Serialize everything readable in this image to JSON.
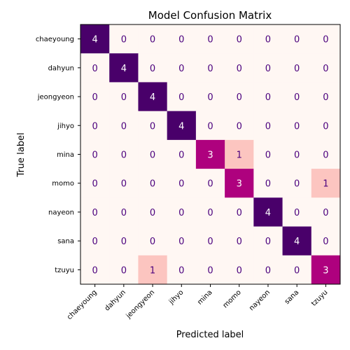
{
  "chart_data": {
    "type": "heatmap",
    "title": "Model Confusion Matrix",
    "xlabel": "Predicted label",
    "ylabel": "True label",
    "labels": [
      "chaeyoung",
      "dahyun",
      "jeongyeon",
      "jihyo",
      "mina",
      "momo",
      "nayeon",
      "sana",
      "tzuyu"
    ],
    "matrix": [
      [
        4,
        0,
        0,
        0,
        0,
        0,
        0,
        0,
        0
      ],
      [
        0,
        4,
        0,
        0,
        0,
        0,
        0,
        0,
        0
      ],
      [
        0,
        0,
        4,
        0,
        0,
        0,
        0,
        0,
        0
      ],
      [
        0,
        0,
        0,
        4,
        0,
        0,
        0,
        0,
        0
      ],
      [
        0,
        0,
        0,
        0,
        3,
        1,
        0,
        0,
        0
      ],
      [
        0,
        0,
        0,
        0,
        0,
        3,
        0,
        0,
        1
      ],
      [
        0,
        0,
        0,
        0,
        0,
        0,
        4,
        0,
        0
      ],
      [
        0,
        0,
        0,
        0,
        0,
        0,
        0,
        4,
        0
      ],
      [
        0,
        0,
        1,
        0,
        0,
        0,
        0,
        0,
        3
      ]
    ],
    "colormap": "RdPu",
    "value_range": [
      0,
      4
    ],
    "cell_text_color": "#4b007d",
    "grid": false
  }
}
